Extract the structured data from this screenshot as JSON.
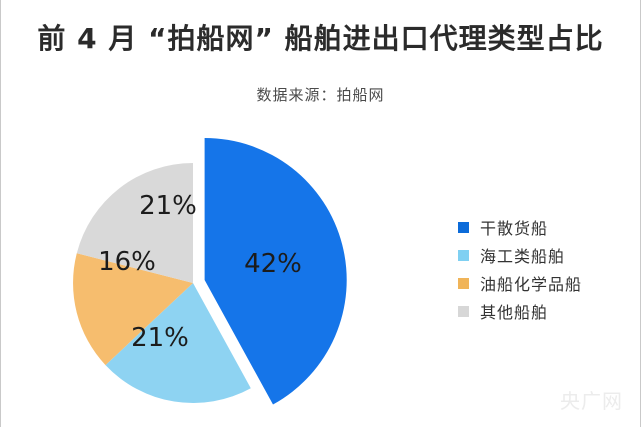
{
  "page": {
    "title": "前 4 月 “拍船网” 船舶进出口代理类型占比",
    "subtitle": "数据来源：拍船网",
    "watermark": "央广网"
  },
  "chart_data": {
    "type": "pie",
    "title": "前 4 月 “拍船网” 船舶进出口代理类型占比",
    "source": "数据来源：拍船网",
    "categories": [
      "干散货船",
      "海工类船舶",
      "油船化学品船",
      "其他船舶"
    ],
    "values": [
      42,
      21,
      16,
      21
    ],
    "slice_labels": [
      "42%",
      "21%",
      "16%",
      "21%"
    ],
    "colors": [
      "#1575e9",
      "#8ed3f2",
      "#f6bd6e",
      "#d9d9d9"
    ],
    "legend_colors": [
      "#0c6bd9",
      "#7fd0f2",
      "#f0b459",
      "#d7d7d7"
    ],
    "legend_position": "right",
    "direction": "clockwise",
    "start_angle_deg": 0,
    "exploded_slice": "干散货船"
  }
}
